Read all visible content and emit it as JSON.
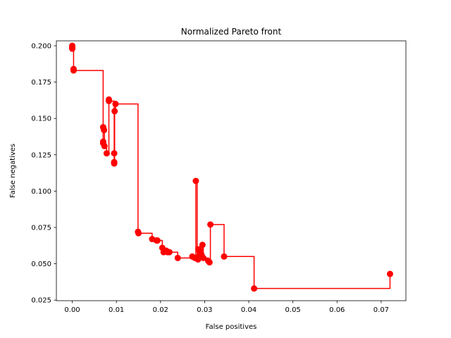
{
  "chart_data": {
    "type": "line",
    "title": "Normalized Pareto front",
    "xlabel": "False positives",
    "ylabel": "False negatives",
    "xlim": [
      -0.0036,
      0.0756
    ],
    "ylim": [
      0.0246,
      0.2034
    ],
    "xticks": [
      "0.00",
      "0.01",
      "0.02",
      "0.03",
      "0.04",
      "0.05",
      "0.06",
      "0.07"
    ],
    "xtick_values": [
      0.0,
      0.01,
      0.02,
      0.03,
      0.04,
      0.05,
      0.06,
      0.07
    ],
    "yticks": [
      "0.025",
      "0.050",
      "0.075",
      "0.100",
      "0.125",
      "0.150",
      "0.175",
      "0.200"
    ],
    "ytick_values": [
      0.025,
      0.05,
      0.075,
      0.1,
      0.125,
      0.15,
      0.175,
      0.2
    ],
    "grid": false,
    "color": "#ff0000",
    "line_style": "step",
    "series": [
      {
        "x": [
          0.0,
          0.0,
          0.0,
          0.0003,
          0.0003,
          0.007,
          0.007,
          0.007,
          0.0072,
          0.0073,
          0.0078,
          0.0083,
          0.0083,
          0.0095,
          0.0095,
          0.0095,
          0.0096,
          0.0098,
          0.0149,
          0.015,
          0.0181,
          0.0191,
          0.0193,
          0.0204,
          0.0207,
          0.0213,
          0.0216,
          0.022,
          0.0239,
          0.0272,
          0.0278,
          0.028,
          0.0283,
          0.0285,
          0.0286,
          0.0287,
          0.0289,
          0.0293,
          0.0295,
          0.0297,
          0.0308,
          0.0311,
          0.0313,
          0.0344,
          0.0412,
          0.072
        ],
        "y": [
          0.2,
          0.199,
          0.198,
          0.184,
          0.183,
          0.134,
          0.133,
          0.144,
          0.142,
          0.131,
          0.126,
          0.163,
          0.162,
          0.126,
          0.119,
          0.12,
          0.155,
          0.16,
          0.072,
          0.071,
          0.067,
          0.066,
          0.066,
          0.061,
          0.058,
          0.059,
          0.058,
          0.058,
          0.054,
          0.055,
          0.054,
          0.107,
          0.054,
          0.053,
          0.06,
          0.055,
          0.059,
          0.056,
          0.063,
          0.054,
          0.052,
          0.051,
          0.077,
          0.055,
          0.033,
          0.043
        ]
      }
    ]
  }
}
